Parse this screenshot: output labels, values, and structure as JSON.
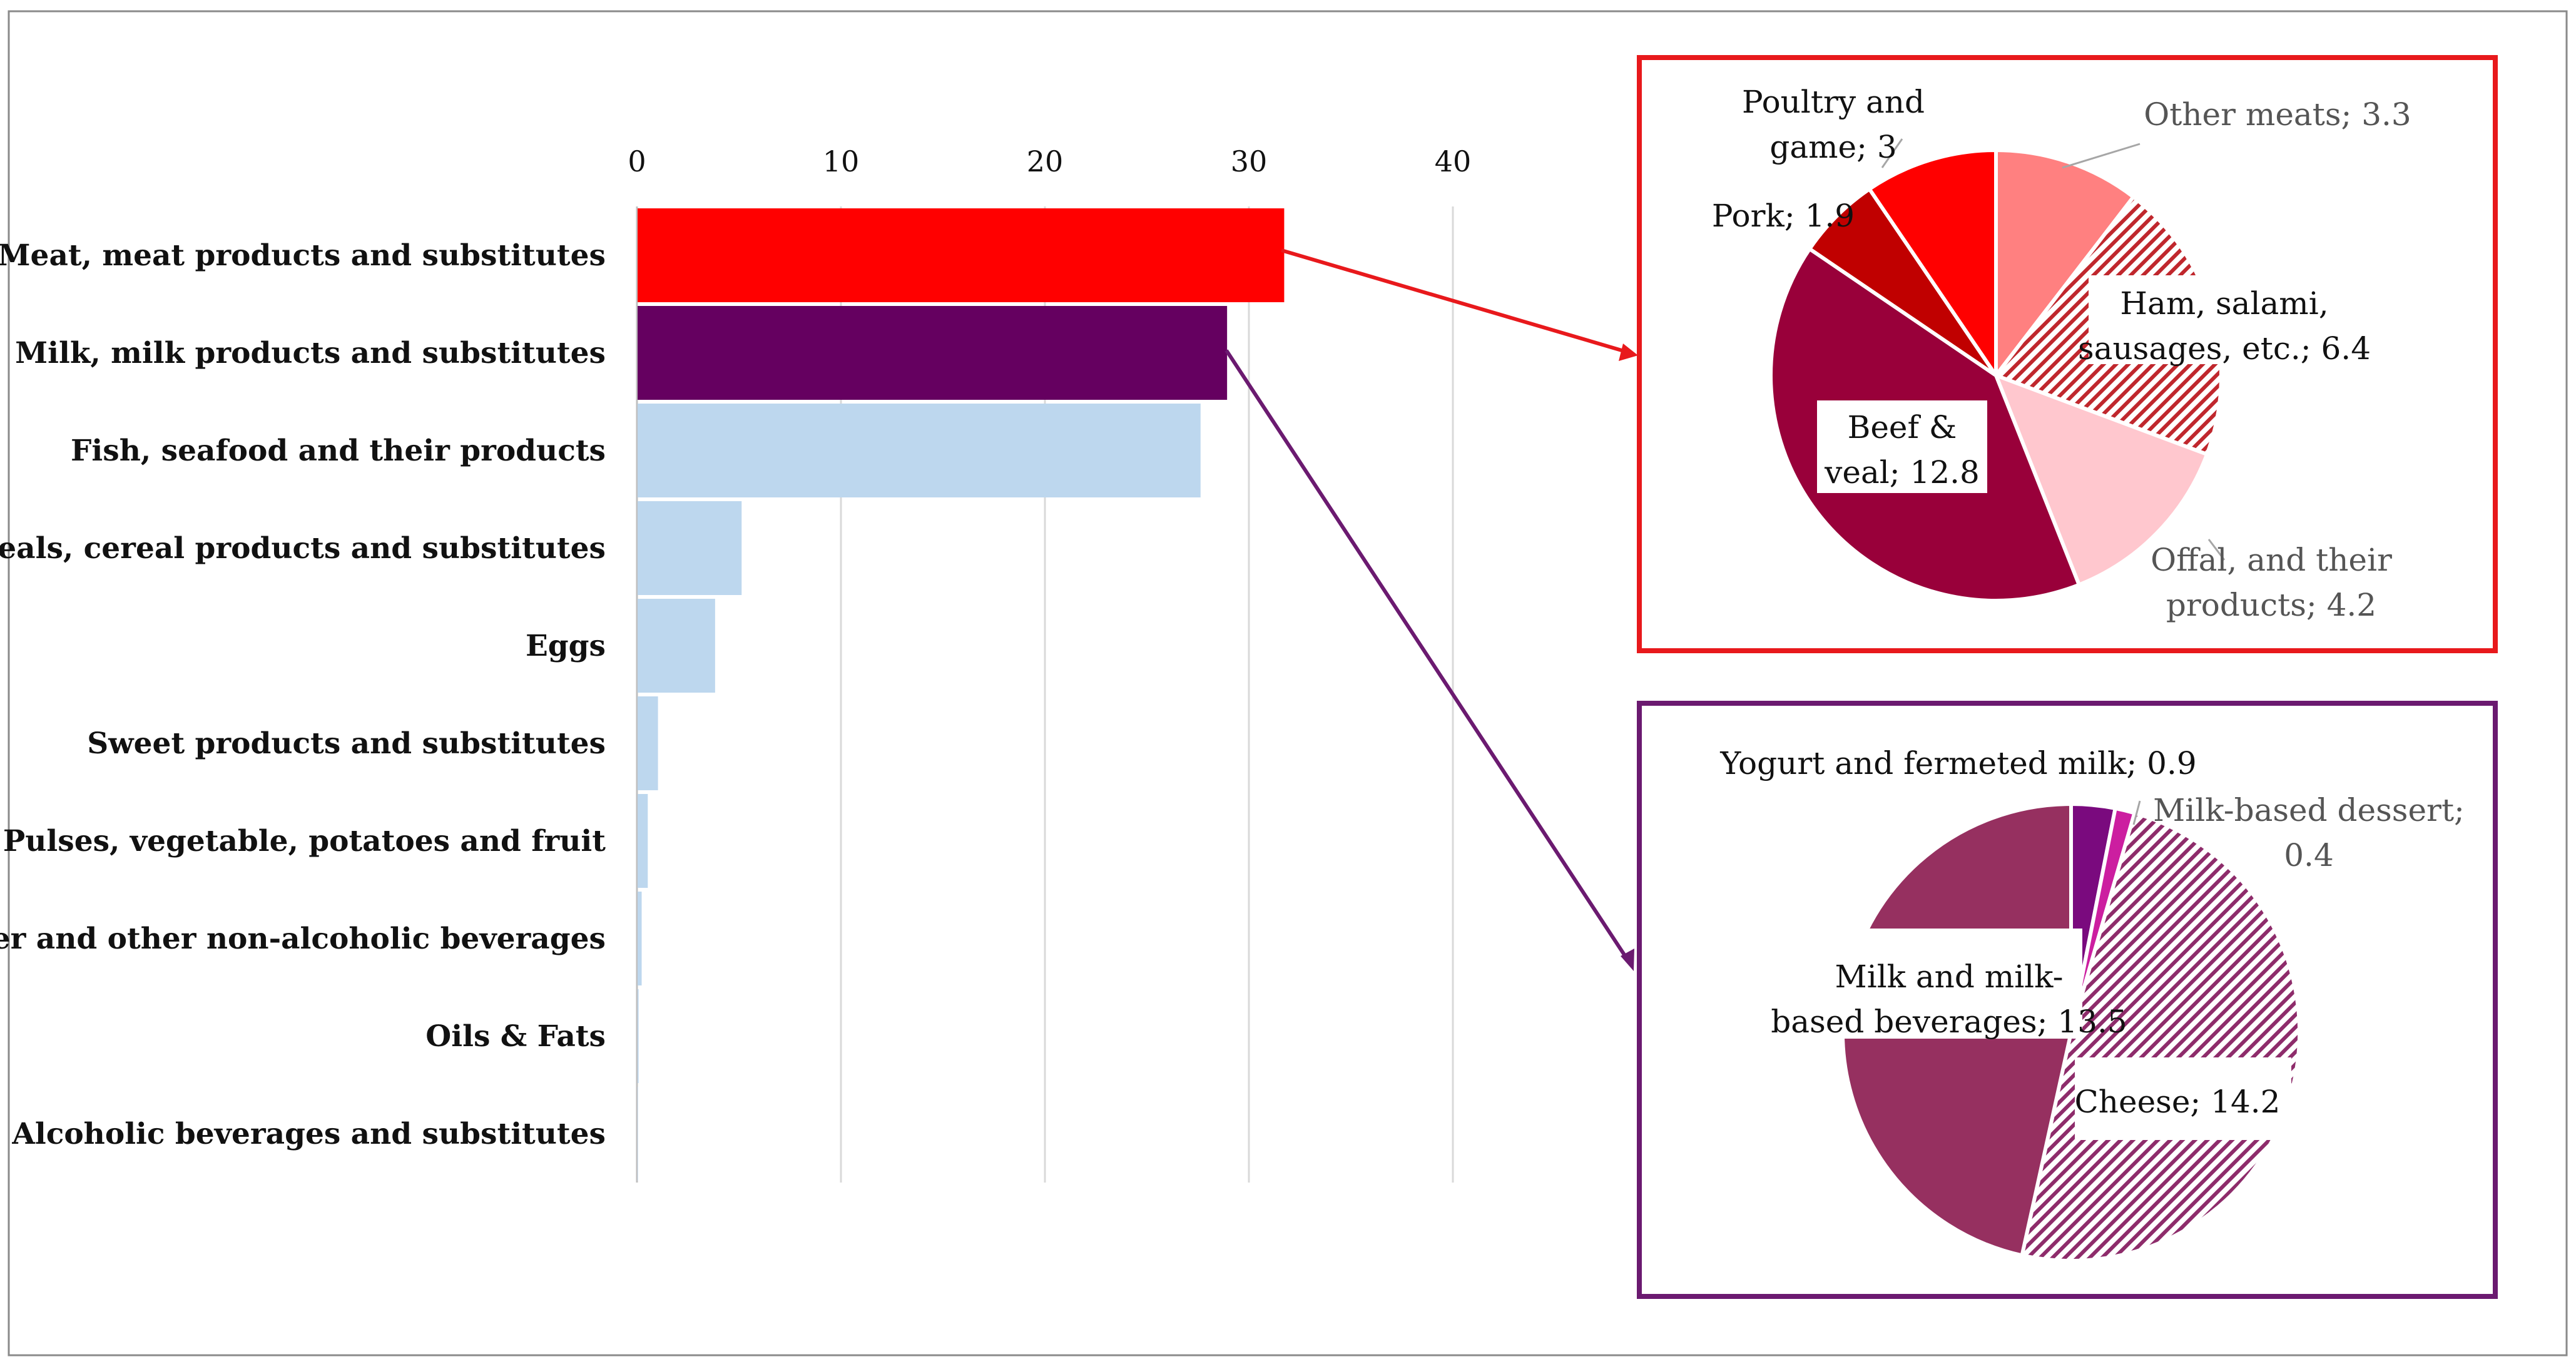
{
  "chart_data": [
    {
      "type": "bar",
      "orientation": "horizontal",
      "title": "",
      "xlabel": "",
      "ylabel": "",
      "xlim": [
        0,
        40
      ],
      "xticks": [
        0,
        10,
        20,
        30,
        40
      ],
      "axis_position": "top",
      "grid": true,
      "categories": [
        "Meat, meat products and substitutes",
        "Milk, milk products and substitutes",
        "Fish, seafood and their products",
        "Cereals, cereal products and substitutes",
        "Eggs",
        "Sweet products and substitutes",
        "Pulses, vegetable, potatoes and fruit",
        "Water and other non-alcoholic beverages",
        "Oils & Fats",
        "Alcoholic beverages and substitutes"
      ],
      "values": [
        31.7,
        28.9,
        27.6,
        5.1,
        3.8,
        1.0,
        0.5,
        0.2,
        0.05,
        0.02
      ],
      "colors": [
        "#ff0000",
        "#650060",
        "#bdd7ee",
        "#bdd7ee",
        "#bdd7ee",
        "#bdd7ee",
        "#bdd7ee",
        "#bdd7ee",
        "#bdd7ee",
        "#bdd7ee"
      ]
    },
    {
      "type": "pie",
      "title": "",
      "frame_color": "#e8191c",
      "slices": [
        {
          "label": "Other meats; 3.3",
          "label_lines": [
            "Other meats; 3.3"
          ],
          "value": 3.3,
          "color": "#ff8080",
          "pattern": "none",
          "label_style": "outside"
        },
        {
          "label": "Ham, salami, sausages, etc.; 6.4",
          "label_lines": [
            "Ham, salami,",
            "sausages, etc.; 6.4"
          ],
          "value": 6.4,
          "color": "#c0272d",
          "pattern": "hatch",
          "label_style": "boxed"
        },
        {
          "label": "Offal, and their products; 4.2",
          "label_lines": [
            "Offal, and their",
            "products; 4.2"
          ],
          "value": 4.2,
          "color": "#ffc7ce",
          "pattern": "none",
          "label_style": "outside"
        },
        {
          "label": "Beef & veal; 12.8",
          "label_lines": [
            "Beef &",
            "veal; 12.8"
          ],
          "value": 12.8,
          "color": "#99003a",
          "pattern": "none",
          "label_style": "boxed"
        },
        {
          "label": "Pork; 1.9",
          "label_lines": [
            "Pork; 1.9"
          ],
          "value": 1.9,
          "color": "#c00000",
          "pattern": "none",
          "label_style": "outside"
        },
        {
          "label": "Poultry and game; 3",
          "label_lines": [
            "Poultry and",
            "game; 3"
          ],
          "value": 3.0,
          "color": "#ff0000",
          "pattern": "none",
          "label_style": "outside"
        }
      ]
    },
    {
      "type": "pie",
      "title": "",
      "frame_color": "#6b1a70",
      "slices": [
        {
          "label": "Yogurt and fermeted milk; 0.9",
          "label_lines": [
            "Yogurt and fermeted milk; 0.9"
          ],
          "value": 0.9,
          "color": "#7a0a7e",
          "pattern": "none",
          "label_style": "outside"
        },
        {
          "label": "Milk-based dessert; 0.4",
          "label_lines": [
            "Milk-based dessert;",
            "0.4"
          ],
          "value": 0.4,
          "color": "#cc1ea0",
          "pattern": "none",
          "label_style": "outside"
        },
        {
          "label": "Cheese; 14.2",
          "label_lines": [
            "Cheese; 14.2"
          ],
          "value": 14.2,
          "color": "#9b2f6e",
          "pattern": "hatch",
          "label_style": "boxed"
        },
        {
          "label": "Milk and milk-based beverages; 13.5",
          "label_lines": [
            "Milk and milk-",
            "based beverages; 13.5"
          ],
          "value": 13.5,
          "color": "#963060",
          "pattern": "none",
          "label_style": "boxed"
        }
      ]
    }
  ]
}
